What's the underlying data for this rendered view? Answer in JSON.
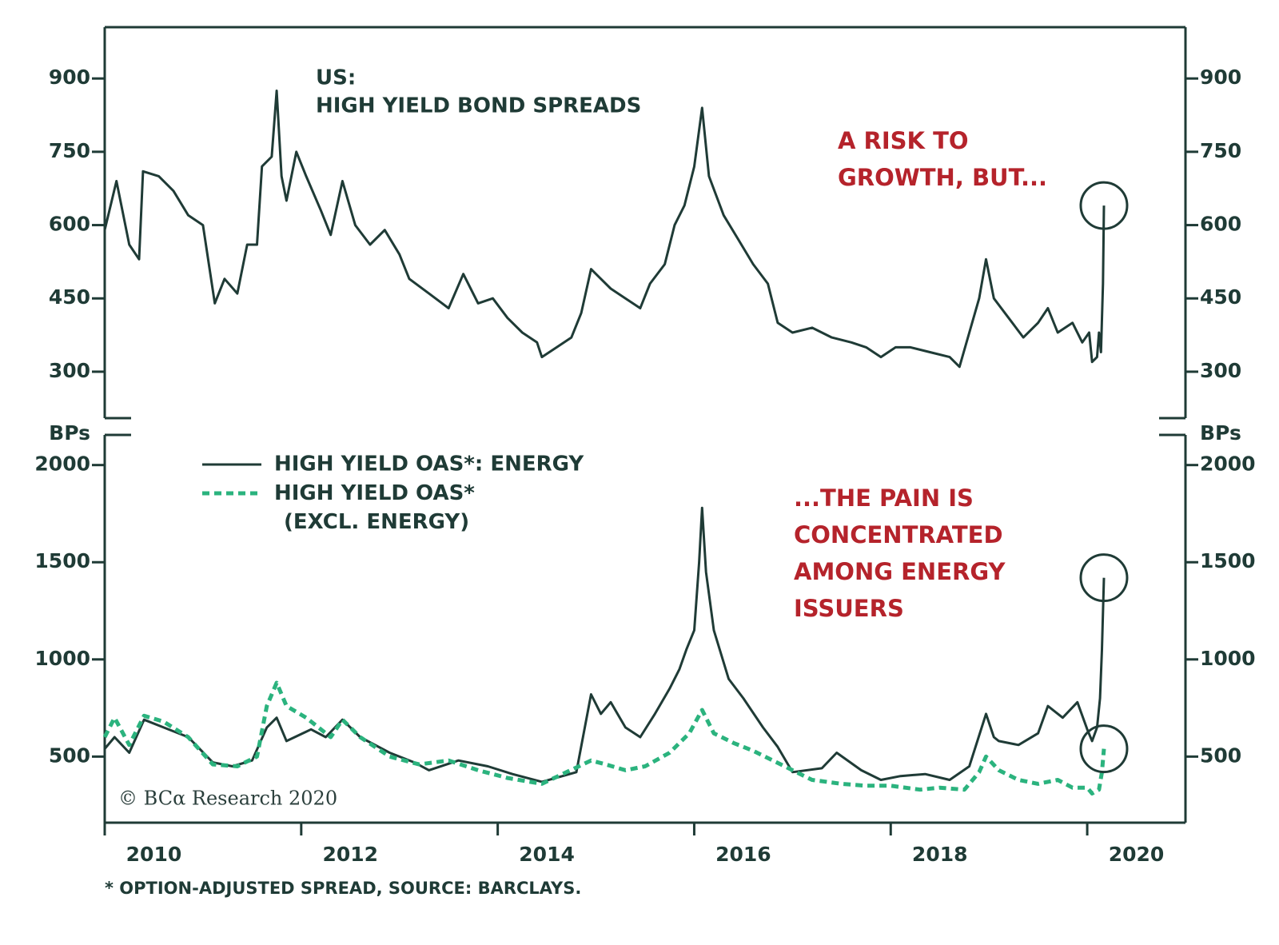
{
  "chart_data": [
    {
      "type": "line",
      "title": "US:",
      "subtitle": "HIGH YIELD BOND SPREADS",
      "annotation": [
        "A RISK TO",
        "GROWTH, BUT..."
      ],
      "color": "#1f3b36",
      "xlim": [
        2010,
        2021
      ],
      "ylim": [
        205,
        1005
      ],
      "yticks": [
        300,
        450,
        600,
        750,
        900
      ],
      "x": [
        2010.0,
        2010.12,
        2010.25,
        2010.35,
        2010.39,
        2010.55,
        2010.7,
        2010.85,
        2011.0,
        2011.06,
        2011.12,
        2011.22,
        2011.35,
        2011.45,
        2011.55,
        2011.6,
        2011.7,
        2011.75,
        2011.8,
        2011.85,
        2011.95,
        2012.05,
        2012.2,
        2012.3,
        2012.42,
        2012.55,
        2012.7,
        2012.85,
        2013.0,
        2013.1,
        2013.3,
        2013.5,
        2013.65,
        2013.8,
        2013.95,
        2014.1,
        2014.25,
        2014.4,
        2014.45,
        2014.6,
        2014.75,
        2014.85,
        2014.95,
        2015.05,
        2015.15,
        2015.3,
        2015.45,
        2015.55,
        2015.7,
        2015.8,
        2015.9,
        2016.0,
        2016.08,
        2016.15,
        2016.3,
        2016.45,
        2016.6,
        2016.75,
        2016.85,
        2017.0,
        2017.2,
        2017.4,
        2017.6,
        2017.75,
        2017.9,
        2018.05,
        2018.2,
        2018.4,
        2018.6,
        2018.7,
        2018.8,
        2018.9,
        2018.97,
        2019.05,
        2019.2,
        2019.35,
        2019.5,
        2019.6,
        2019.7,
        2019.85,
        2019.95,
        2020.02,
        2020.05,
        2020.1,
        2020.12,
        2020.14,
        2020.16,
        2020.17
      ],
      "values": [
        590,
        690,
        560,
        530,
        710,
        700,
        670,
        620,
        600,
        520,
        440,
        490,
        460,
        560,
        560,
        720,
        740,
        875,
        700,
        650,
        750,
        700,
        630,
        580,
        690,
        600,
        560,
        590,
        540,
        490,
        460,
        430,
        500,
        440,
        450,
        410,
        380,
        360,
        330,
        350,
        370,
        420,
        510,
        490,
        470,
        450,
        430,
        480,
        520,
        600,
        640,
        720,
        840,
        700,
        620,
        570,
        520,
        480,
        400,
        380,
        390,
        370,
        360,
        350,
        330,
        350,
        350,
        340,
        330,
        310,
        380,
        450,
        530,
        450,
        410,
        370,
        400,
        430,
        380,
        400,
        360,
        380,
        320,
        330,
        380,
        340,
        480,
        640
      ]
    },
    {
      "type": "line",
      "ylabel": "BPs",
      "annotation": [
        "...THE PAIN IS",
        "CONCENTRATED",
        "AMONG ENERGY",
        "ISSUERS"
      ],
      "xlim": [
        2010,
        2021
      ],
      "xticks": [
        2010,
        2012,
        2014,
        2016,
        2018,
        2020
      ],
      "ylim": [
        160,
        2155
      ],
      "yticks": [
        500,
        1000,
        1500,
        2000
      ],
      "series": [
        {
          "name": "HIGH YIELD OAS*: ENERGY",
          "color": "#1f3b36",
          "dashed": false,
          "x": [
            2010.0,
            2010.1,
            2010.25,
            2010.4,
            2010.6,
            2010.85,
            2011.1,
            2011.3,
            2011.5,
            2011.65,
            2011.75,
            2011.85,
            2012.1,
            2012.25,
            2012.42,
            2012.6,
            2012.9,
            2013.15,
            2013.3,
            2013.6,
            2013.9,
            2014.15,
            2014.45,
            2014.8,
            2014.95,
            2015.05,
            2015.15,
            2015.3,
            2015.45,
            2015.6,
            2015.75,
            2015.85,
            2015.92,
            2016.0,
            2016.05,
            2016.08,
            2016.12,
            2016.2,
            2016.35,
            2016.5,
            2016.7,
            2016.85,
            2017.0,
            2017.3,
            2017.45,
            2017.7,
            2017.9,
            2018.1,
            2018.35,
            2018.6,
            2018.8,
            2018.97,
            2019.05,
            2019.1,
            2019.3,
            2019.5,
            2019.6,
            2019.75,
            2019.9,
            2020.0,
            2020.05,
            2020.1,
            2020.13,
            2020.15,
            2020.17
          ],
          "values": [
            540,
            600,
            520,
            690,
            650,
            600,
            470,
            450,
            480,
            650,
            700,
            580,
            640,
            600,
            690,
            600,
            520,
            470,
            430,
            480,
            450,
            410,
            370,
            420,
            820,
            720,
            780,
            650,
            600,
            720,
            850,
            950,
            1050,
            1150,
            1500,
            1780,
            1450,
            1150,
            900,
            800,
            650,
            550,
            420,
            440,
            520,
            430,
            380,
            400,
            410,
            380,
            450,
            720,
            600,
            580,
            560,
            620,
            760,
            700,
            780,
            640,
            580,
            650,
            800,
            1050,
            1420
          ]
        },
        {
          "name": "HIGH YIELD OAS*\n(EXCL. ENERGY)",
          "color": "#2bb37e",
          "dashed": true,
          "x": [
            2010.0,
            2010.1,
            2010.25,
            2010.4,
            2010.6,
            2010.85,
            2011.1,
            2011.35,
            2011.55,
            2011.65,
            2011.75,
            2011.85,
            2012.05,
            2012.3,
            2012.42,
            2012.6,
            2012.9,
            2013.2,
            2013.5,
            2013.8,
            2014.1,
            2014.45,
            2014.7,
            2014.95,
            2015.1,
            2015.3,
            2015.5,
            2015.75,
            2015.95,
            2016.08,
            2016.2,
            2016.4,
            2016.6,
            2016.8,
            2017.0,
            2017.2,
            2017.5,
            2017.75,
            2018.0,
            2018.3,
            2018.5,
            2018.75,
            2018.9,
            2018.97,
            2019.1,
            2019.3,
            2019.5,
            2019.7,
            2019.85,
            2020.0,
            2020.05,
            2020.12,
            2020.15,
            2020.17
          ],
          "values": [
            600,
            700,
            560,
            710,
            680,
            600,
            460,
            450,
            500,
            760,
            880,
            760,
            700,
            600,
            690,
            600,
            500,
            460,
            480,
            430,
            390,
            360,
            420,
            480,
            460,
            430,
            450,
            520,
            620,
            740,
            620,
            570,
            530,
            480,
            430,
            380,
            360,
            350,
            350,
            330,
            340,
            330,
            420,
            500,
            430,
            380,
            360,
            380,
            340,
            340,
            310,
            330,
            420,
            540
          ]
        }
      ]
    }
  ],
  "copyright": "© BCα Research 2020",
  "footnote": "* OPTION-ADJUSTED SPREAD, SOURCE: BARCLAYS."
}
